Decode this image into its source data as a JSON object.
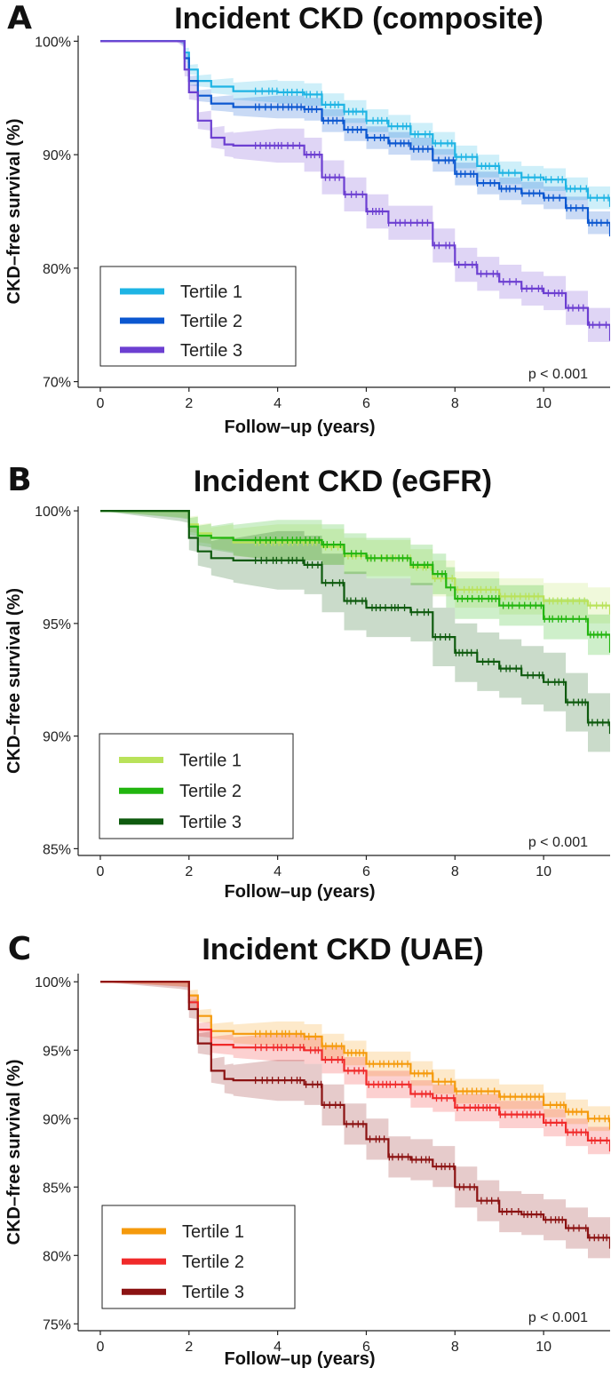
{
  "chart_data": [
    {
      "type": "line",
      "panel": "A",
      "title": "Incident CKD (composite)",
      "xlabel": "Follow–up (years)",
      "ylabel": "CKD–free survival (%)",
      "xlim": [
        -0.5,
        11.5
      ],
      "ylim": [
        69.5,
        100.5
      ],
      "xticks": [
        0,
        2,
        4,
        6,
        8,
        10
      ],
      "xtick_labels": [
        "0",
        "2",
        "4",
        "6",
        "8",
        "10"
      ],
      "yticks": [
        70,
        80,
        90,
        100
      ],
      "ytick_labels": [
        "70%",
        "80%",
        "90%",
        "100%"
      ],
      "legend_position": "bottom-left",
      "annotation": "p < 0.001",
      "series": [
        {
          "name": "Tertile 1",
          "color": "#1EB4E4",
          "band": 1.0,
          "x": [
            0,
            1.75,
            1.9,
            2.0,
            2.2,
            2.5,
            3.0,
            4.0,
            4.6,
            5.0,
            5.5,
            6.0,
            6.5,
            7.0,
            7.5,
            8.0,
            8.5,
            9.0,
            9.5,
            10.0,
            10.5,
            11.0,
            11.5
          ],
          "y": [
            100,
            100,
            99.0,
            97.5,
            96.5,
            96.0,
            95.6,
            95.5,
            95.3,
            94.4,
            93.8,
            93.0,
            92.5,
            91.8,
            91.0,
            89.8,
            89.0,
            88.4,
            88.0,
            87.8,
            87.0,
            86.2,
            85.4
          ]
        },
        {
          "name": "Tertile 2",
          "color": "#0B57D0",
          "band": 1.0,
          "x": [
            0,
            1.75,
            1.9,
            2.0,
            2.2,
            2.5,
            3.0,
            4.0,
            4.6,
            5.0,
            5.5,
            6.0,
            6.5,
            7.0,
            7.5,
            8.0,
            8.5,
            9.0,
            9.5,
            10.0,
            10.5,
            11.0,
            11.5
          ],
          "y": [
            100,
            100,
            98.5,
            96.5,
            95.2,
            94.5,
            94.2,
            94.2,
            94.0,
            93.0,
            92.2,
            91.5,
            91.0,
            90.5,
            89.5,
            88.3,
            87.5,
            87.0,
            86.6,
            86.2,
            85.3,
            84.0,
            82.8
          ]
        },
        {
          "name": "Tertile 3",
          "color": "#6C3FD1",
          "band": 1.5,
          "x": [
            0,
            1.7,
            1.9,
            2.0,
            2.2,
            2.5,
            2.8,
            3.0,
            4.0,
            4.6,
            5.0,
            5.5,
            6.0,
            6.5,
            7.0,
            7.5,
            8.0,
            8.5,
            9.0,
            9.5,
            10.0,
            10.5,
            11.0,
            11.5
          ],
          "y": [
            100,
            100,
            97.5,
            95.5,
            93.0,
            91.5,
            90.9,
            90.8,
            90.8,
            90.0,
            88.0,
            86.5,
            85.0,
            84.0,
            84.0,
            82.0,
            80.3,
            79.5,
            78.8,
            78.2,
            77.8,
            76.5,
            75.0,
            73.6
          ]
        }
      ]
    },
    {
      "type": "line",
      "panel": "B",
      "title": "Incident CKD (eGFR)",
      "xlabel": "Follow–up (years)",
      "ylabel": "CKD–free survival (%)",
      "xlim": [
        -0.5,
        11.5
      ],
      "ylim": [
        84.7,
        100.2
      ],
      "xticks": [
        0,
        2,
        4,
        6,
        8,
        10
      ],
      "xtick_labels": [
        "0",
        "2",
        "4",
        "6",
        "8",
        "10"
      ],
      "yticks": [
        85,
        90,
        95,
        100
      ],
      "ytick_labels": [
        "85%",
        "90%",
        "95%",
        "100%"
      ],
      "legend_position": "bottom-left",
      "annotation": "p < 0.001",
      "series": [
        {
          "name": "Tertile 1",
          "color": "#B9E25A",
          "band": 0.8,
          "x": [
            0,
            1.8,
            2.0,
            2.2,
            2.5,
            3.0,
            4.0,
            5.0,
            5.5,
            6.0,
            7.0,
            7.5,
            8.0,
            9.0,
            10.0,
            11.0,
            11.5
          ],
          "y": [
            100,
            100,
            99.4,
            99.0,
            98.8,
            98.6,
            98.6,
            98.4,
            98.0,
            97.9,
            97.5,
            97.0,
            96.5,
            96.2,
            96.0,
            95.8,
            95.4
          ]
        },
        {
          "name": "Tertile 2",
          "color": "#22B50F",
          "band": 0.9,
          "x": [
            0,
            1.8,
            2.0,
            2.2,
            2.5,
            3.0,
            4.0,
            5.0,
            5.5,
            6.0,
            7.0,
            7.5,
            7.8,
            8.0,
            9.0,
            10.0,
            11.0,
            11.5
          ],
          "y": [
            100,
            100,
            99.3,
            98.9,
            98.8,
            98.7,
            98.7,
            98.5,
            98.1,
            97.9,
            97.6,
            97.2,
            96.6,
            96.1,
            95.8,
            95.2,
            94.5,
            93.7
          ]
        },
        {
          "name": "Tertile 3",
          "color": "#0E5A0E",
          "band": 1.3,
          "x": [
            0,
            1.8,
            2.0,
            2.2,
            2.5,
            3.0,
            4.0,
            4.6,
            5.0,
            5.5,
            6.0,
            7.0,
            7.5,
            8.0,
            8.5,
            9.0,
            9.5,
            10.0,
            10.5,
            11.0,
            11.5
          ],
          "y": [
            100,
            100,
            98.8,
            98.2,
            97.9,
            97.8,
            97.8,
            97.6,
            96.8,
            96.0,
            95.7,
            95.5,
            94.4,
            93.7,
            93.3,
            93.0,
            92.7,
            92.4,
            91.5,
            90.6,
            90.1
          ]
        }
      ]
    },
    {
      "type": "line",
      "panel": "C",
      "title": "Incident CKD (UAE)",
      "xlabel": "Follow–up (years)",
      "ylabel": "CKD–free survival (%)",
      "xlim": [
        -0.5,
        11.5
      ],
      "ylim": [
        74.5,
        100.6
      ],
      "xticks": [
        0,
        2,
        4,
        6,
        8,
        10
      ],
      "xtick_labels": [
        "0",
        "2",
        "4",
        "6",
        "8",
        "10"
      ],
      "yticks": [
        75,
        80,
        85,
        90,
        95,
        100
      ],
      "ytick_labels": [
        "75%",
        "80%",
        "85%",
        "90%",
        "95%",
        "100%"
      ],
      "legend_position": "bottom-left",
      "annotation": "p < 0.001",
      "series": [
        {
          "name": "Tertile 1",
          "color": "#F59A0C",
          "band": 0.9,
          "x": [
            0,
            1.8,
            2.0,
            2.2,
            2.5,
            3.0,
            4.0,
            4.6,
            5.0,
            5.5,
            6.0,
            7.0,
            7.5,
            8.0,
            9.0,
            10.0,
            10.5,
            11.0,
            11.5
          ],
          "y": [
            100,
            100,
            99.0,
            97.5,
            96.4,
            96.2,
            96.2,
            96.0,
            95.3,
            94.8,
            94.0,
            93.3,
            92.7,
            92.0,
            91.6,
            91.0,
            90.5,
            90.0,
            89.2
          ]
        },
        {
          "name": "Tertile 2",
          "color": "#F02A2A",
          "band": 1.0,
          "x": [
            0,
            1.8,
            2.0,
            2.2,
            2.5,
            3.0,
            4.0,
            4.6,
            5.0,
            5.5,
            6.0,
            7.0,
            7.5,
            8.0,
            9.0,
            10.0,
            10.5,
            11.0,
            11.5
          ],
          "y": [
            100,
            100,
            98.5,
            96.5,
            95.4,
            95.2,
            95.2,
            95.0,
            94.3,
            93.5,
            92.5,
            91.8,
            91.5,
            90.8,
            90.3,
            89.7,
            89.0,
            88.4,
            87.6
          ]
        },
        {
          "name": "Tertile 3",
          "color": "#8B1212",
          "band": 1.5,
          "x": [
            0,
            1.8,
            2.0,
            2.2,
            2.5,
            2.8,
            3.0,
            4.0,
            4.6,
            5.0,
            5.5,
            6.0,
            6.5,
            7.0,
            7.5,
            8.0,
            8.5,
            9.0,
            9.5,
            10.0,
            10.5,
            11.0,
            11.5
          ],
          "y": [
            100,
            100,
            98.0,
            95.5,
            93.5,
            92.9,
            92.8,
            92.8,
            92.5,
            91.0,
            89.6,
            88.5,
            87.2,
            87.0,
            86.5,
            85.0,
            84.0,
            83.2,
            83.0,
            82.6,
            82.0,
            81.3,
            80.5
          ]
        }
      ]
    }
  ]
}
